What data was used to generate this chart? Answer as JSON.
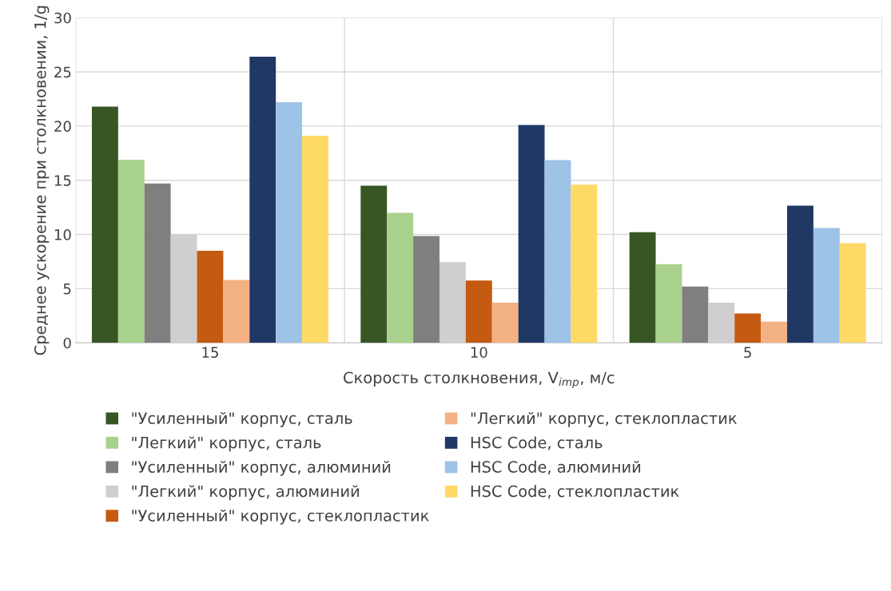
{
  "chart_data": {
    "type": "bar",
    "xlabel": "Скорость столкновения, V$_{imp}$, м/с",
    "ylabel": "Среднее ускорение при столкновении, 1/g",
    "categories": [
      "15",
      "10",
      "5"
    ],
    "series": [
      {
        "name": "\"Усиленный\" корпус, сталь",
        "color": "#375623",
        "values": [
          21.8,
          14.5,
          10.2
        ]
      },
      {
        "name": "\"Легкий\" корпус, сталь",
        "color": "#a9d18e",
        "values": [
          16.9,
          12.0,
          7.25
        ]
      },
      {
        "name": "\"Усиленный\" корпус, алюминий",
        "color": "#7f7f7f",
        "values": [
          14.7,
          9.85,
          5.2
        ]
      },
      {
        "name": "\"Легкий\" корпус, алюминий",
        "color": "#d0cece",
        "values": [
          10.0,
          7.45,
          3.7
        ]
      },
      {
        "name": "\"Усиленный\" корпус, стеклопластик",
        "color": "#c55a11",
        "values": [
          8.5,
          5.75,
          2.7
        ]
      },
      {
        "name": "\"Легкий\" корпус, стеклопластик",
        "color": "#f4b183",
        "values": [
          5.8,
          3.7,
          1.95
        ]
      },
      {
        "name": "HSC Code, сталь",
        "color": "#203864",
        "values": [
          26.4,
          20.1,
          12.65
        ]
      },
      {
        "name": "HSC Code, алюминий",
        "color": "#9dc3e6",
        "values": [
          22.2,
          16.85,
          10.6
        ]
      },
      {
        "name": "HSC Code, стеклопластик",
        "color": "#ffd966",
        "values": [
          19.1,
          14.6,
          9.2
        ]
      }
    ],
    "ylim": [
      0,
      30
    ],
    "yticks": [
      0,
      5,
      10,
      15,
      20,
      25,
      30
    ],
    "grid": true,
    "legend": "bottom"
  }
}
